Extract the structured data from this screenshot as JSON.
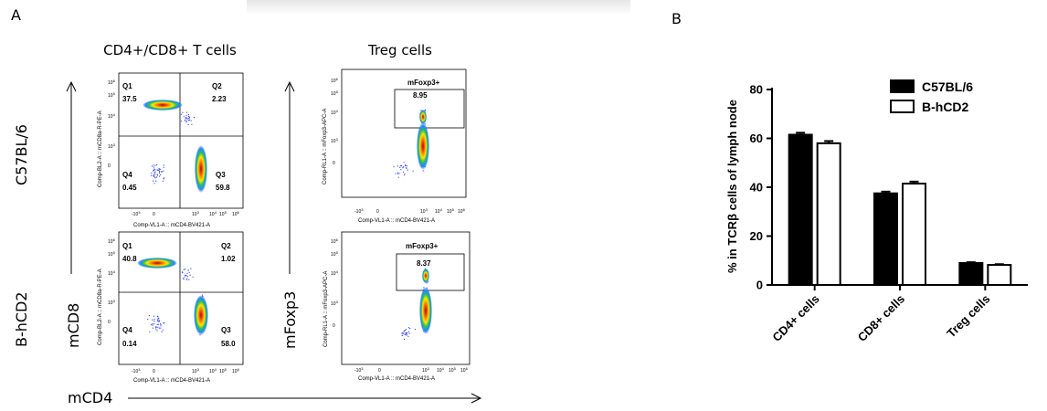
{
  "panel_a": {
    "letter": "A",
    "col_titles": [
      "CD4+/CD8+ T cells",
      "Treg cells"
    ],
    "row_labels": [
      "C57BL/6",
      "B-hCD2"
    ],
    "mcd8_label": "mCD8",
    "mfoxp3_label": "mFoxp3",
    "mcd4_label": "mCD4",
    "quad_x_axis_label": "Comp-VL1-A :: mCD4-BV421-A",
    "quad_y_axis_label": "Comp-BL2-A :: mCD8a-R-PE-A",
    "treg_x_axis_label": "Comp-VL1-A :: mCD4-BV421-A",
    "treg_y_axis_label": "Comp-RL1-A :: mFoxp3-APC-A",
    "quadrant_names": [
      "Q1",
      "Q2",
      "Q3",
      "Q4"
    ],
    "gate_label": "mFoxp3+",
    "c57_quadrants": [
      "37.5",
      "2.23",
      "59.8",
      "0.45"
    ],
    "c57_treg": "8.95",
    "bhcd2_quadrants": [
      "40.8",
      "1.02",
      "58.0",
      "0.14"
    ],
    "bhcd2_treg": "8.37"
  },
  "chart_data": {
    "type": "bar",
    "panel_letter": "B",
    "categories": [
      "CD4+ cells",
      "CD8+ cells",
      "Treg cells"
    ],
    "series": [
      {
        "name": "C57BL/6",
        "values": [
          61.5,
          37.5,
          9.0
        ],
        "errors": [
          0.8,
          0.7,
          0.3
        ],
        "color": "#000000"
      },
      {
        "name": "B-hCD2",
        "values": [
          58.0,
          41.5,
          8.2
        ],
        "errors": [
          0.9,
          0.8,
          0.3
        ],
        "color": "#ffffff"
      }
    ],
    "ylabel": "% in TCRβ cells of lymph node",
    "ylim": [
      0,
      80
    ],
    "yticks": [
      0,
      20,
      40,
      60,
      80
    ],
    "grid": false,
    "legend": "top-right"
  }
}
